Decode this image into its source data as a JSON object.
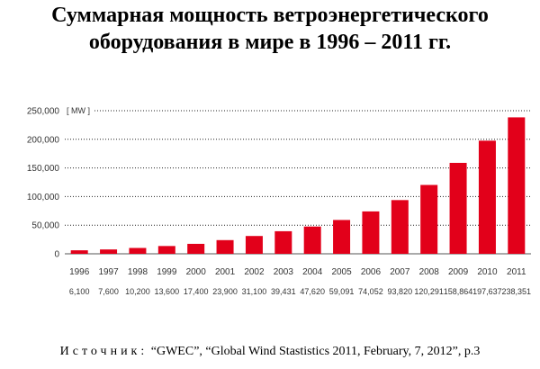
{
  "page": {
    "title_line1": "Суммарная мощность ветроэнергетического",
    "title_line2": "оборудования в мире в 1996 – 2011 гг.",
    "source_label": "Источник:",
    "source_text": "“GWEC”, “Global Wind Stastistics 2011, February, 7, 2012”, p.3"
  },
  "chart_data": {
    "type": "bar",
    "unit_label": "[ MW ]",
    "categories": [
      "1996",
      "1997",
      "1998",
      "1999",
      "2000",
      "2001",
      "2002",
      "2003",
      "2004",
      "2005",
      "2006",
      "2007",
      "2008",
      "2009",
      "2010",
      "2011"
    ],
    "values": [
      6100,
      7600,
      10200,
      13600,
      17400,
      23900,
      31100,
      39431,
      47620,
      59091,
      74052,
      93820,
      120291,
      158864,
      197637,
      238351
    ],
    "value_labels": [
      "6,100",
      "7,600",
      "10,200",
      "13,600",
      "17,400",
      "23,900",
      "31,100",
      "39,431",
      "47,620",
      "59,091",
      "74,052",
      "93,820",
      "120,291",
      "158,864",
      "197,637",
      "238,351"
    ],
    "ylim": [
      0,
      250000
    ],
    "yticks": [
      0,
      50000,
      100000,
      150000,
      200000,
      250000
    ],
    "ytick_labels": [
      "0",
      "50,000",
      "100,000",
      "150,000",
      "200,000",
      "250,000"
    ],
    "bar_color": "#e2001a",
    "grid": "dotted-horizontal"
  }
}
